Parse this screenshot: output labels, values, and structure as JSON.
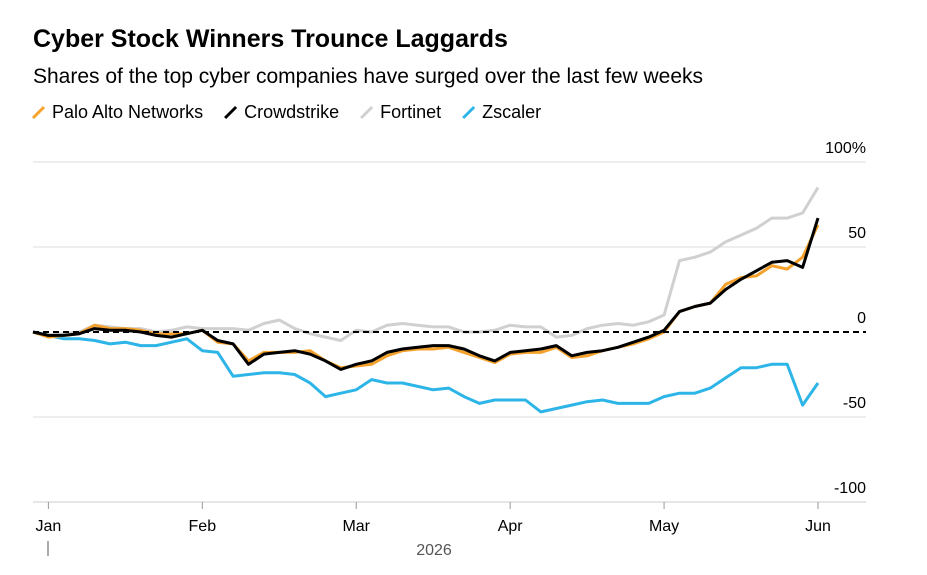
{
  "chart_data": {
    "type": "line",
    "title": "Cyber Stock Winners Trounce Laggards",
    "subtitle": "Shares of the top cyber companies have surged over the last few weeks",
    "xlabel": "2026",
    "categories": [
      null,
      "Jan",
      null,
      null,
      null,
      null,
      null,
      null,
      null,
      null,
      null,
      "Feb",
      null,
      null,
      null,
      null,
      null,
      null,
      null,
      null,
      null,
      "Mar",
      null,
      null,
      null,
      null,
      null,
      null,
      null,
      null,
      null,
      "Apr",
      null,
      null,
      null,
      null,
      null,
      null,
      null,
      null,
      null,
      "May",
      null,
      null,
      null,
      null,
      null,
      null,
      null,
      null,
      null,
      "Jun"
    ],
    "series": [
      {
        "name": "Palo Alto Networks",
        "color": "#f5a22d",
        "values": [
          0,
          -3,
          -2,
          -1,
          4,
          2,
          2,
          1,
          -1,
          -1,
          -1,
          1,
          -6,
          -7,
          -17,
          -12,
          -12,
          -12,
          -11,
          -17,
          -21,
          -20,
          -19,
          -14,
          -11,
          -10,
          -10,
          -9,
          -12,
          -15,
          -18,
          -13,
          -12,
          -12,
          -9,
          -15,
          -14,
          -11,
          -9,
          -7,
          -4,
          0,
          12,
          15,
          17,
          28,
          32,
          33,
          39,
          37,
          44,
          63
        ]
      },
      {
        "name": "Crowdstrike",
        "color": "#000000",
        "values": [
          0,
          -2,
          -2,
          -1,
          2,
          1,
          1,
          0,
          -2,
          -3,
          -1,
          1,
          -5,
          -7,
          -19,
          -13,
          -12,
          -11,
          -13,
          -17,
          -22,
          -19,
          -17,
          -12,
          -10,
          -9,
          -8,
          -8,
          -10,
          -14,
          -17,
          -12,
          -11,
          -10,
          -8,
          -14,
          -12,
          -11,
          -9,
          -6,
          -3,
          1,
          12,
          15,
          17,
          25,
          31,
          36,
          41,
          42,
          38,
          67
        ]
      },
      {
        "name": "Fortinet",
        "color": "#d0d0d0",
        "values": [
          0,
          -2,
          -1,
          0,
          4,
          3,
          2,
          2,
          0,
          1,
          3,
          2,
          2,
          2,
          1,
          5,
          7,
          2,
          -1,
          -3,
          -5,
          1,
          0,
          4,
          5,
          4,
          3,
          3,
          0,
          0,
          1,
          4,
          3,
          3,
          -3,
          -2,
          2,
          4,
          5,
          4,
          6,
          10,
          42,
          44,
          47,
          53,
          57,
          61,
          67,
          67,
          70,
          85
        ]
      },
      {
        "name": "Zscaler",
        "color": "#2eb5e8",
        "values": [
          0,
          -2,
          -4,
          -4,
          -5,
          -7,
          -6,
          -8,
          -8,
          -6,
          -4,
          -11,
          -12,
          -26,
          -25,
          -24,
          -24,
          -25,
          -30,
          -38,
          -36,
          -34,
          -28,
          -30,
          -30,
          -32,
          -34,
          -33,
          -38,
          -42,
          -40,
          -40,
          -40,
          -47,
          -45,
          -43,
          -41,
          -40,
          -42,
          -42,
          -42,
          -38,
          -36,
          -36,
          -33,
          -27,
          -21,
          -21,
          -19,
          -19,
          -43,
          -30
        ]
      }
    ],
    "ylim": [
      -100,
      100
    ],
    "yticks": [
      -100,
      -50,
      0,
      50,
      {
        "value": 100,
        "label": "100%"
      }
    ],
    "grid": true
  }
}
